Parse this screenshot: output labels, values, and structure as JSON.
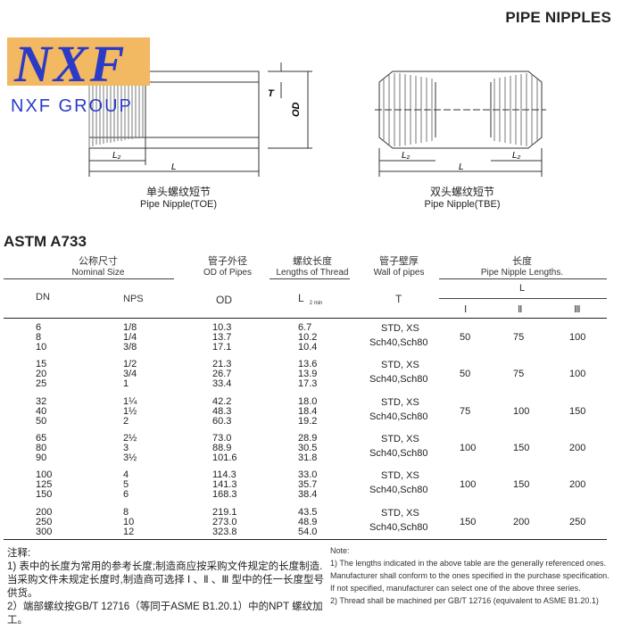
{
  "page_title": "PIPE NIPPLES",
  "logo": {
    "mark": "NXF",
    "name": "NXF GROUP"
  },
  "figures": [
    {
      "cn": "单头螺纹短节",
      "en": "Pipe Nipple(TOE)",
      "labels": {
        "t": "T",
        "od": "OD",
        "l2": "L₂",
        "l": "L"
      }
    },
    {
      "cn": "双头螺纹短节",
      "en": "Pipe Nipple(TBE)",
      "labels": {
        "l2a": "L₂",
        "l": "L",
        "l2b": "L₂"
      }
    }
  ],
  "standard": "ASTM A733",
  "table": {
    "groups": [
      {
        "cn": "公称尺寸",
        "en": "Nominal  Size"
      },
      {
        "cn": "管子外径",
        "en": "OD of Pipes"
      },
      {
        "cn": "螺纹长度",
        "en": "Lengths of Thread"
      },
      {
        "cn": "管子壁厚",
        "en": "Wall of pipes"
      },
      {
        "cn": "长度",
        "en": "Pipe Nipple Lengths."
      }
    ],
    "columns": {
      "dn": "DN",
      "nps": "NPS",
      "od": "OD",
      "l2": "L",
      "l2_sub": "2 min",
      "t": "T",
      "l": "L",
      "i": "Ⅰ",
      "ii": "Ⅱ",
      "iii": "Ⅲ"
    },
    "row_groups": [
      {
        "dn": [
          "6",
          "8",
          "10"
        ],
        "nps": [
          "1/8",
          "1/4",
          "3/8"
        ],
        "od": [
          "10.3",
          "13.7",
          "17.1"
        ],
        "l2": [
          "6.7",
          "10.2",
          "10.4"
        ],
        "t": [
          "STD, XS",
          "Sch40,Sch80"
        ],
        "len": [
          "50",
          "75",
          "100"
        ]
      },
      {
        "dn": [
          "15",
          "20",
          "25"
        ],
        "nps": [
          "1/2",
          "3/4",
          "1"
        ],
        "od": [
          "21.3",
          "26.7",
          "33.4"
        ],
        "l2": [
          "13.6",
          "13.9",
          "17.3"
        ],
        "t": [
          "STD, XS",
          "Sch40,Sch80"
        ],
        "len": [
          "50",
          "75",
          "100"
        ]
      },
      {
        "dn": [
          "32",
          "40",
          "50"
        ],
        "nps": [
          "1¼",
          "1½",
          "2"
        ],
        "od": [
          "42.2",
          "48.3",
          "60.3"
        ],
        "l2": [
          "18.0",
          "18.4",
          "19.2"
        ],
        "t": [
          "STD, XS",
          "Sch40,Sch80"
        ],
        "len": [
          "75",
          "100",
          "150"
        ]
      },
      {
        "dn": [
          "65",
          "80",
          "90"
        ],
        "nps": [
          "2½",
          "3",
          "3½"
        ],
        "od": [
          "73.0",
          "88.9",
          "101.6"
        ],
        "l2": [
          "28.9",
          "30.5",
          "31.8"
        ],
        "t": [
          "STD, XS",
          "Sch40,Sch80"
        ],
        "len": [
          "100",
          "150",
          "200"
        ]
      },
      {
        "dn": [
          "100",
          "125",
          "150"
        ],
        "nps": [
          "4",
          "5",
          "6"
        ],
        "od": [
          "114.3",
          "141.3",
          "168.3"
        ],
        "l2": [
          "33.0",
          "35.7",
          "38.4"
        ],
        "t": [
          "STD, XS",
          "Sch40,Sch80"
        ],
        "len": [
          "100",
          "150",
          "200"
        ]
      },
      {
        "dn": [
          "200",
          "250",
          "300"
        ],
        "nps": [
          "8",
          "10",
          "12"
        ],
        "od": [
          "219.1",
          "273.0",
          "323.8"
        ],
        "l2": [
          "43.5",
          "48.9",
          "54.0"
        ],
        "t": [
          "STD, XS",
          "Sch40,Sch80"
        ],
        "len": [
          "150",
          "200",
          "250"
        ]
      }
    ]
  },
  "notes_cn": {
    "title": "注释:",
    "items": [
      "1) 表中的长度为常用的参考长度;制造商应按采购文件规定的长度制造.当采购文件未规定长度时,制造商可选择 Ⅰ 、Ⅱ 、Ⅲ 型中的任一长度型号供货。",
      "2）端部螺纹按GB/T 12716（等同于ASME B1.20.1）中的NPT 螺纹加工。"
    ]
  },
  "notes_en": {
    "title": "Note:",
    "items": [
      "1)  The lengths indicated in the above table are the generally referenced ones. Manufacturer shall conform to the ones  specified in the purchase specification. If not specified, manufacturer can select one of the above three series.",
      "2)  Thread shall be machined per GB/T 12716 (equivalent to ASME B1.20.1)"
    ]
  }
}
